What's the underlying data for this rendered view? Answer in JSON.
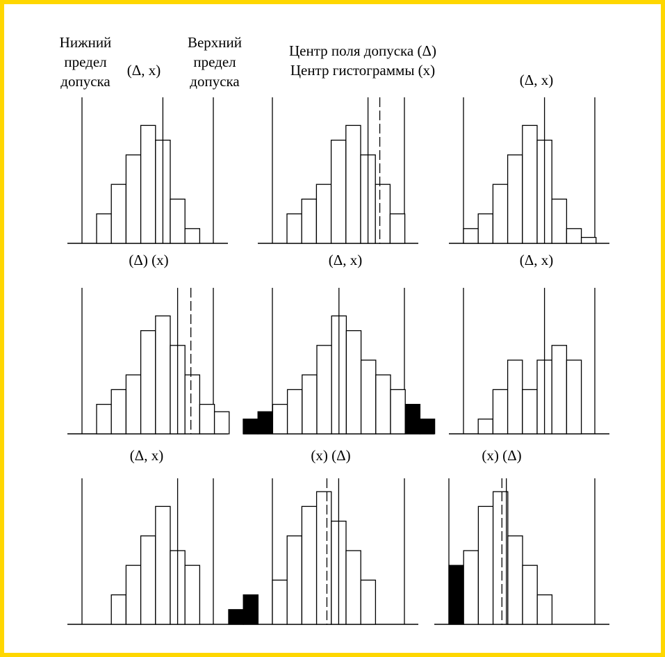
{
  "frame_color": "#FFD700",
  "header": {
    "lower_limit": [
      "Нижний",
      "предел",
      "допуска"
    ],
    "upper_limit": [
      "Верхний",
      "предел",
      "допуска"
    ],
    "center_legend": [
      "Центр поля допуска (Δ)",
      "Центр гистограммы (x)"
    ]
  },
  "panels": [
    {
      "label": "(Δ, x)",
      "bars": [
        2,
        4,
        6,
        8,
        7,
        3,
        1,
        0,
        0,
        0,
        0
      ],
      "filled": [],
      "tol_center": 4.5,
      "hist_center": null
    },
    {
      "label": "",
      "bars": [
        2,
        3,
        4,
        7,
        8,
        6,
        4,
        2,
        0,
        0,
        0
      ],
      "filled": [],
      "tol_center": 5.5,
      "hist_center": 6.3
    },
    {
      "label": "(Δ, x)",
      "bars": [
        1,
        2,
        4,
        6,
        8,
        7,
        3,
        1,
        0.4,
        0,
        0
      ],
      "filled": [],
      "tol_center": 5.5,
      "hist_center": 5.5
    },
    {
      "label": "(Δ) (x)",
      "bars": [
        2,
        3,
        4,
        7,
        8,
        6,
        4,
        2,
        1.5,
        0,
        0
      ],
      "filled": [],
      "tol_center": 5.5,
      "hist_center": 6.4
    },
    {
      "label": "(Δ, x)",
      "bars": [
        1,
        1.5,
        2,
        3,
        4,
        6,
        8,
        7,
        5,
        4,
        3,
        2,
        1
      ],
      "filled": [
        0,
        1,
        11,
        12
      ],
      "tol_center": 6.5,
      "hist_center": 6.5
    },
    {
      "label": "(Δ, x)",
      "bars": [
        0,
        1,
        3,
        5,
        3,
        5,
        6,
        5,
        0,
        0,
        0
      ],
      "filled": [],
      "tol_center": 5.5,
      "hist_center": 5.5
    },
    {
      "label": "(Δ, x)",
      "bars": [
        0,
        2,
        4,
        6,
        8,
        5,
        4,
        0,
        0,
        0,
        0
      ],
      "filled": [],
      "tol_center": 5.5,
      "hist_center": 5.5,
      "outside": [
        1,
        2
      ]
    },
    {
      "label": "(x) (Δ)",
      "bars": [
        3,
        6,
        8,
        9,
        7,
        5,
        3,
        0,
        0,
        0,
        0
      ],
      "filled": [],
      "tol_center": 4.5,
      "hist_center": 3.7
    },
    {
      "label": "(x) (Δ)",
      "bars": [
        4,
        5,
        8,
        9,
        6,
        4,
        2,
        0,
        0,
        0,
        0
      ],
      "filled": [
        0
      ],
      "tol_center": 3.9,
      "hist_center": 3.6
    }
  ]
}
